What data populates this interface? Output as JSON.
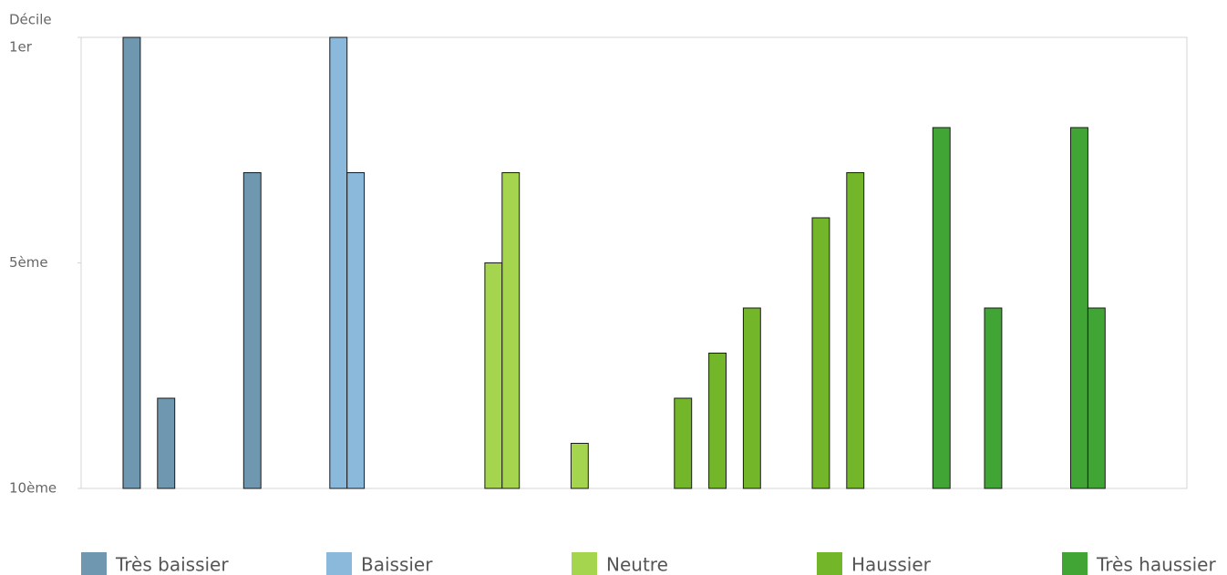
{
  "chart_data": {
    "type": "bar",
    "y_label": "Décile",
    "ylim": [
      0,
      10
    ],
    "yticks": [
      {
        "value": 10,
        "label": "1er"
      },
      {
        "value": 5,
        "label": "5ème"
      },
      {
        "value": 0,
        "label": "10ème"
      }
    ],
    "series": [
      {
        "name": "Très baissier",
        "color": "#6f97b0",
        "values": [
          10,
          null,
          2,
          null,
          null,
          null,
          null,
          7,
          null,
          null,
          null,
          null,
          null,
          null,
          null,
          null,
          null,
          null,
          null,
          null,
          null,
          null,
          null,
          null,
          null,
          null,
          null,
          null,
          null,
          null,
          null,
          null,
          null,
          null,
          null,
          null,
          null,
          null,
          null,
          null,
          null,
          null,
          null,
          null,
          null,
          null,
          null,
          null,
          null,
          null,
          null,
          null,
          null,
          null,
          null,
          null,
          null
        ]
      },
      {
        "name": "Baissier",
        "color": "#8ab9dc",
        "values": [
          null,
          null,
          null,
          null,
          null,
          null,
          null,
          null,
          null,
          null,
          null,
          null,
          10,
          7,
          null,
          null,
          null,
          null,
          null,
          null,
          null,
          null,
          null,
          null,
          null,
          null,
          null,
          null,
          null,
          null,
          null,
          null,
          null,
          null,
          null,
          null,
          null,
          null,
          null,
          null,
          null,
          null,
          null,
          null,
          null,
          null,
          null,
          null,
          null,
          null,
          null,
          null,
          null,
          null,
          null,
          null,
          null
        ]
      },
      {
        "name": "Neutre",
        "color": "#a5d44e",
        "values": [
          null,
          null,
          null,
          null,
          null,
          null,
          null,
          null,
          null,
          null,
          null,
          null,
          null,
          null,
          null,
          null,
          null,
          null,
          null,
          null,
          null,
          5,
          7,
          null,
          null,
          null,
          1,
          null,
          null,
          null,
          null,
          null,
          null,
          null,
          null,
          null,
          null,
          null,
          null,
          null,
          null,
          null,
          null,
          null,
          null,
          null,
          null,
          null,
          null,
          null,
          null,
          null,
          null,
          null,
          null,
          null,
          null
        ]
      },
      {
        "name": "Haussier",
        "color": "#73b62a",
        "values": [
          null,
          null,
          null,
          null,
          null,
          null,
          null,
          null,
          null,
          null,
          null,
          null,
          null,
          null,
          null,
          null,
          null,
          null,
          null,
          null,
          null,
          null,
          null,
          null,
          null,
          null,
          null,
          null,
          null,
          null,
          null,
          null,
          2,
          null,
          3,
          null,
          4,
          null,
          null,
          null,
          6,
          null,
          7,
          null,
          null,
          null,
          null,
          null,
          null,
          null,
          null,
          null,
          null,
          null,
          null,
          null,
          null
        ]
      },
      {
        "name": "Très haussier",
        "color": "#41a535",
        "values": [
          null,
          null,
          null,
          null,
          null,
          null,
          null,
          null,
          null,
          null,
          null,
          null,
          null,
          null,
          null,
          null,
          null,
          null,
          null,
          null,
          null,
          null,
          null,
          null,
          null,
          null,
          null,
          null,
          null,
          null,
          null,
          null,
          null,
          null,
          null,
          null,
          null,
          null,
          null,
          null,
          null,
          null,
          null,
          null,
          null,
          null,
          null,
          8,
          null,
          null,
          4,
          null,
          null,
          null,
          null,
          8,
          4
        ]
      }
    ]
  }
}
